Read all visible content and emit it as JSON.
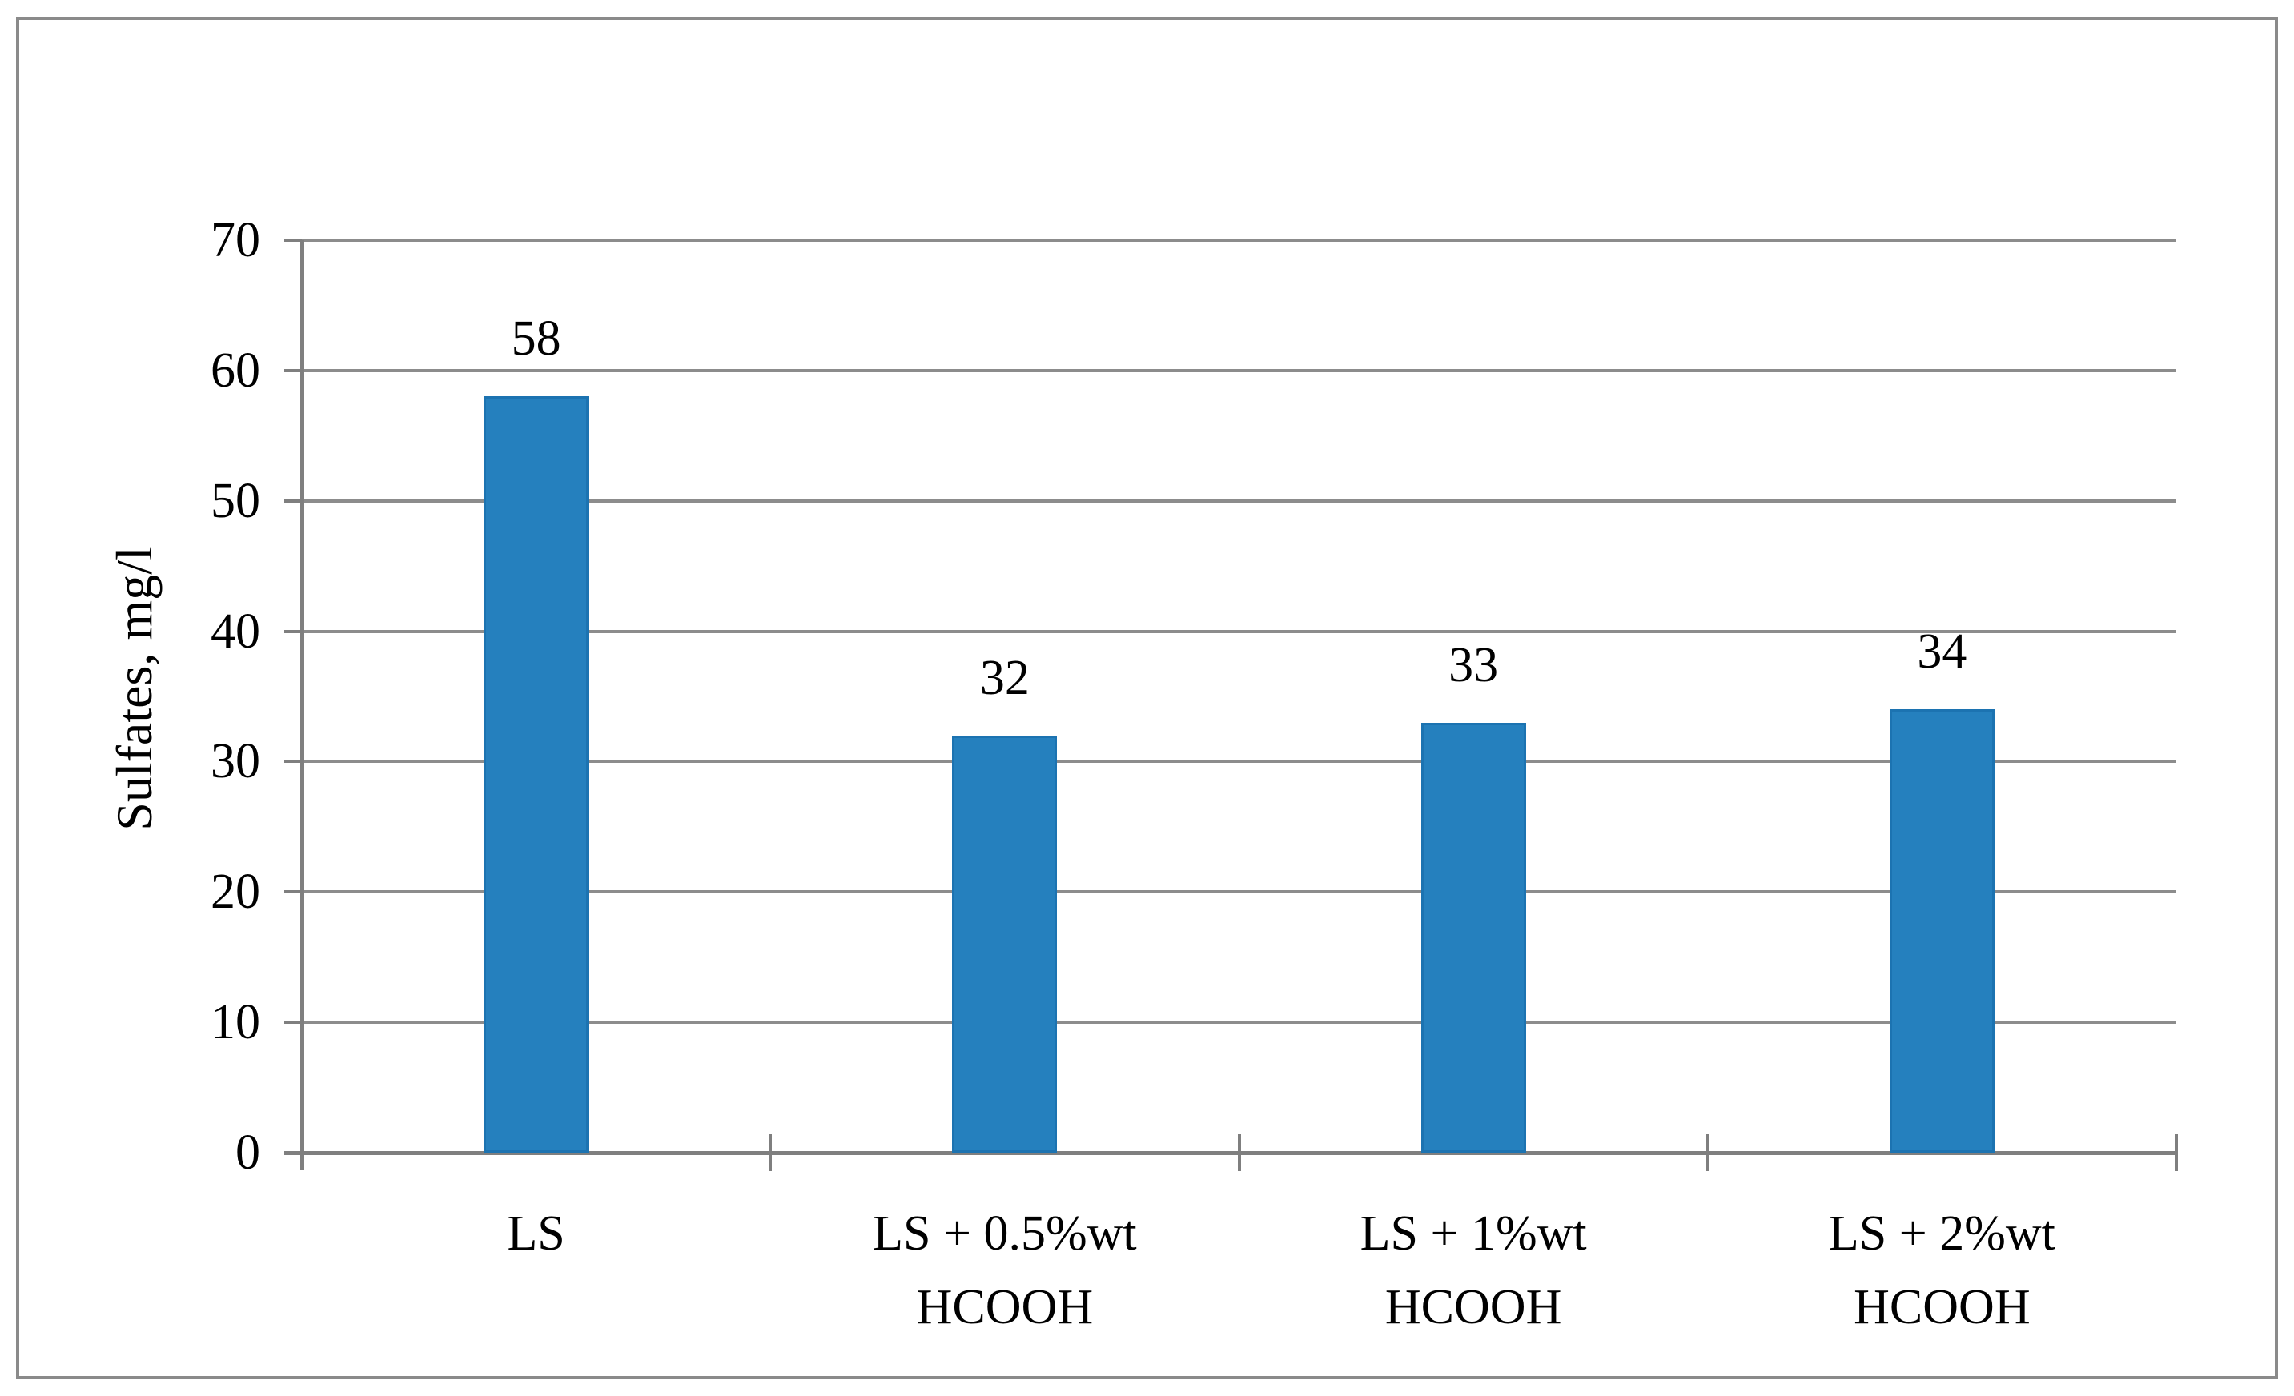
{
  "chart_data": {
    "type": "bar",
    "title": "",
    "xlabel": "",
    "ylabel": "Sulfates, mg/l",
    "categories": [
      "LS",
      "LS + 0.5%wt\nHCOOH",
      "LS + 1%wt\nHCOOH",
      "LS + 2%wt\nHCOOH"
    ],
    "values": [
      58,
      32,
      33,
      34
    ],
    "data_labels": [
      "58",
      "32",
      "33",
      "34"
    ],
    "yticks": [
      0,
      10,
      20,
      30,
      40,
      50,
      60,
      70
    ],
    "ytick_labels": [
      "0",
      "10",
      "20",
      "30",
      "40",
      "50",
      "60",
      "70"
    ],
    "ylim": [
      0,
      70
    ],
    "grid": "horizontal",
    "legend_position": "none",
    "colors": {
      "bar_fill": "#2580BE",
      "bar_border": "#1C73B1",
      "gridline": "#8C8C8C",
      "axis": "#7F7F7F",
      "text": "#000000",
      "outer_frame": "#8A8A8A",
      "background": "#FFFFFF"
    }
  }
}
